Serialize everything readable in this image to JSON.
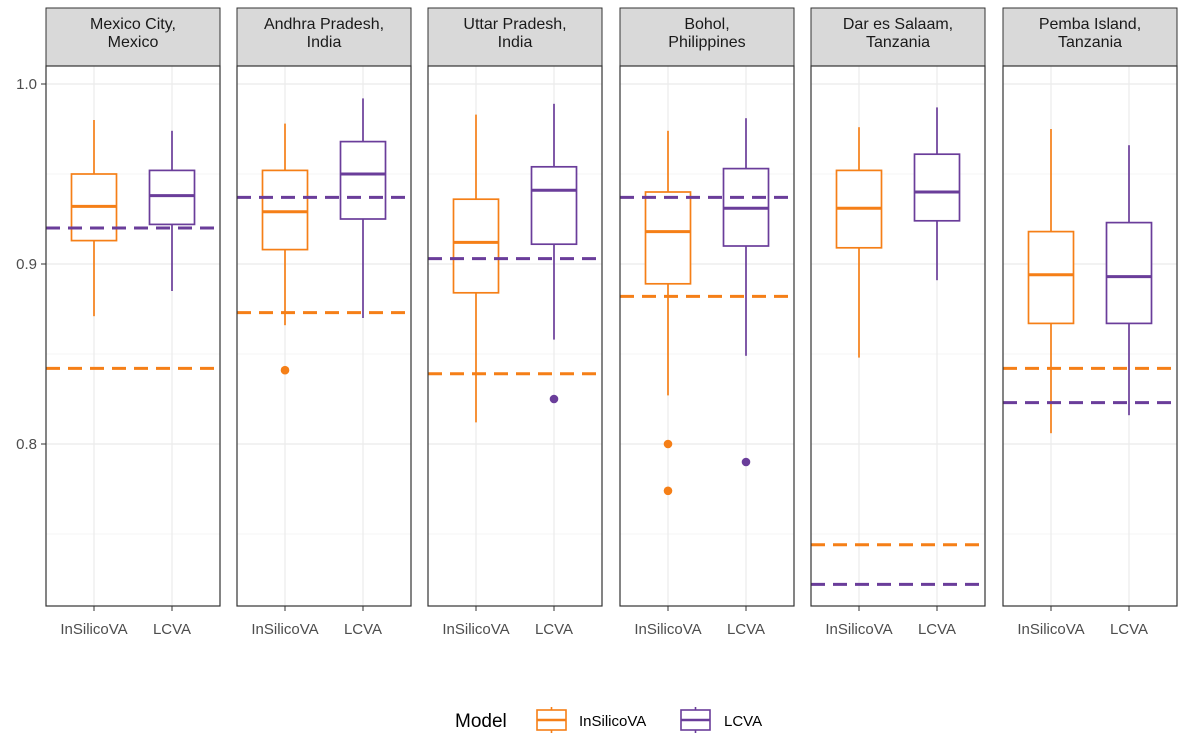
{
  "chart_data": {
    "type": "boxplot",
    "ylim": [
      0.71,
      1.01
    ],
    "y_ticks": [
      0.8,
      0.9,
      1.0
    ],
    "y_tick_labels": [
      "0.8",
      "0.9",
      "1.0"
    ],
    "x_categories": [
      "InSilicoVA",
      "LCVA"
    ],
    "legend": {
      "title": "Model",
      "position": "bottom",
      "items": [
        {
          "label": "InSilicoVA",
          "color": "#f57f17"
        },
        {
          "label": "LCVA",
          "color": "#6a3d9a"
        }
      ]
    },
    "colors": {
      "InSilicoVA": "#f57f17",
      "LCVA": "#6a3d9a"
    },
    "panels": [
      {
        "strip": [
          "Mexico City,",
          "Mexico"
        ],
        "boxes": [
          {
            "model": "InSilicoVA",
            "whisker_low": 0.871,
            "q1": 0.913,
            "median": 0.932,
            "q3": 0.95,
            "whisker_high": 0.98,
            "outliers": []
          },
          {
            "model": "LCVA",
            "whisker_low": 0.885,
            "q1": 0.922,
            "median": 0.938,
            "q3": 0.952,
            "whisker_high": 0.974,
            "outliers": []
          }
        ],
        "reference_lines": [
          {
            "model": "InSilicoVA",
            "value": 0.842
          },
          {
            "model": "LCVA",
            "value": 0.92
          }
        ]
      },
      {
        "strip": [
          "Andhra Pradesh,",
          "India"
        ],
        "boxes": [
          {
            "model": "InSilicoVA",
            "whisker_low": 0.866,
            "q1": 0.908,
            "median": 0.929,
            "q3": 0.952,
            "whisker_high": 0.978,
            "outliers": [
              0.841
            ]
          },
          {
            "model": "LCVA",
            "whisker_low": 0.87,
            "q1": 0.925,
            "median": 0.95,
            "q3": 0.968,
            "whisker_high": 0.992,
            "outliers": []
          }
        ],
        "reference_lines": [
          {
            "model": "InSilicoVA",
            "value": 0.873
          },
          {
            "model": "LCVA",
            "value": 0.937
          }
        ]
      },
      {
        "strip": [
          "Uttar Pradesh,",
          "India"
        ],
        "boxes": [
          {
            "model": "InSilicoVA",
            "whisker_low": 0.812,
            "q1": 0.884,
            "median": 0.912,
            "q3": 0.936,
            "whisker_high": 0.983,
            "outliers": []
          },
          {
            "model": "LCVA",
            "whisker_low": 0.858,
            "q1": 0.911,
            "median": 0.941,
            "q3": 0.954,
            "whisker_high": 0.989,
            "outliers": [
              0.825
            ]
          }
        ],
        "reference_lines": [
          {
            "model": "InSilicoVA",
            "value": 0.839
          },
          {
            "model": "LCVA",
            "value": 0.903
          }
        ]
      },
      {
        "strip": [
          "Bohol,",
          "Philippines"
        ],
        "boxes": [
          {
            "model": "InSilicoVA",
            "whisker_low": 0.827,
            "q1": 0.889,
            "median": 0.918,
            "q3": 0.94,
            "whisker_high": 0.974,
            "outliers": [
              0.8,
              0.774
            ]
          },
          {
            "model": "LCVA",
            "whisker_low": 0.849,
            "q1": 0.91,
            "median": 0.931,
            "q3": 0.953,
            "whisker_high": 0.981,
            "outliers": [
              0.79
            ]
          }
        ],
        "reference_lines": [
          {
            "model": "InSilicoVA",
            "value": 0.882
          },
          {
            "model": "LCVA",
            "value": 0.937
          }
        ]
      },
      {
        "strip": [
          "Dar es Salaam,",
          "Tanzania"
        ],
        "boxes": [
          {
            "model": "InSilicoVA",
            "whisker_low": 0.848,
            "q1": 0.909,
            "median": 0.931,
            "q3": 0.952,
            "whisker_high": 0.976,
            "outliers": []
          },
          {
            "model": "LCVA",
            "whisker_low": 0.891,
            "q1": 0.924,
            "median": 0.94,
            "q3": 0.961,
            "whisker_high": 0.987,
            "outliers": []
          }
        ],
        "reference_lines": [
          {
            "model": "InSilicoVA",
            "value": 0.744
          },
          {
            "model": "LCVA",
            "value": 0.722
          }
        ]
      },
      {
        "strip": [
          "Pemba Island,",
          "Tanzania"
        ],
        "boxes": [
          {
            "model": "InSilicoVA",
            "whisker_low": 0.806,
            "q1": 0.867,
            "median": 0.894,
            "q3": 0.918,
            "whisker_high": 0.975,
            "outliers": []
          },
          {
            "model": "LCVA",
            "whisker_low": 0.816,
            "q1": 0.867,
            "median": 0.893,
            "q3": 0.923,
            "whisker_high": 0.966,
            "outliers": []
          }
        ],
        "reference_lines": [
          {
            "model": "InSilicoVA",
            "value": 0.842
          },
          {
            "model": "LCVA",
            "value": 0.823
          }
        ]
      }
    ]
  }
}
